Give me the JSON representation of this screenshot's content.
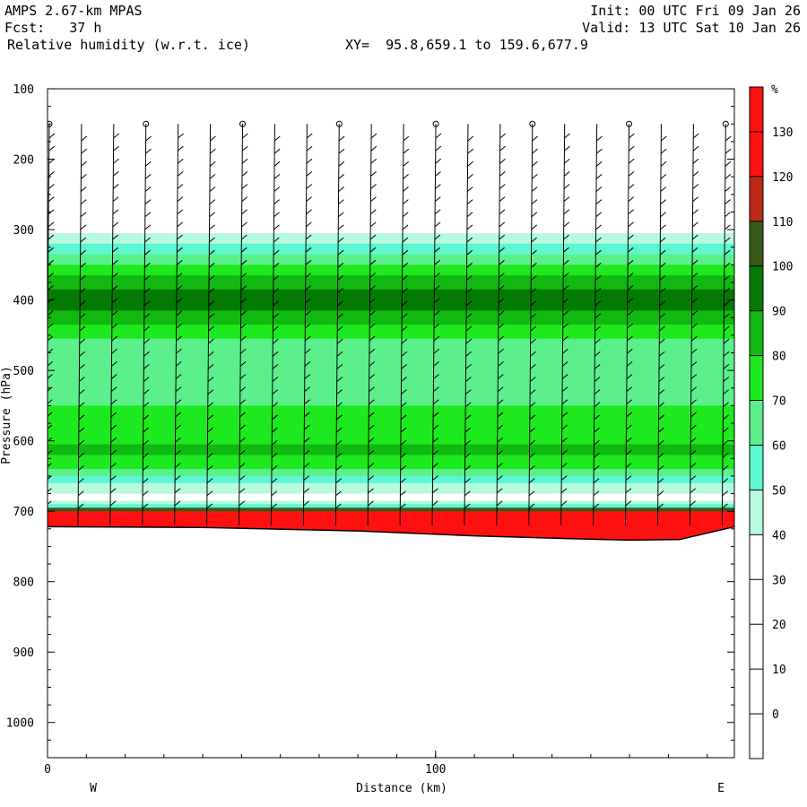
{
  "header": {
    "model": "AMPS 2.67-km MPAS",
    "forecast": "Fcst:   37 h",
    "field": "Relative humidity (w.r.t. ice)",
    "xy_range": "XY=  95.8,659.1 to 159.6,677.9",
    "init": "Init: 00 UTC Fri 09 Jan 26",
    "valid": "Valid: 13 UTC Sat 10 Jan 26"
  },
  "chart_data": {
    "type": "heatmap",
    "title": "Relative humidity (w.r.t. ice)",
    "xlabel": "Distance (km)",
    "ylabel": "Pressure (hPa)",
    "xlim": [
      0,
      177
    ],
    "ylim": [
      1050,
      100
    ],
    "x_ticks": [
      0,
      100
    ],
    "y_ticks": [
      100,
      200,
      300,
      400,
      500,
      600,
      700,
      800,
      900,
      1000
    ],
    "x_end_labels": {
      "left": "W",
      "right": "E"
    },
    "colorbar": {
      "unit": "%",
      "levels": [
        0,
        10,
        20,
        30,
        40,
        50,
        60,
        70,
        80,
        90,
        100,
        110,
        120,
        130
      ],
      "colors": [
        "#ffffff",
        "#ffffff",
        "#ffffff",
        "#ffffff",
        "#ffffff",
        "#b8fae0",
        "#5cf7d0",
        "#5cf08c",
        "#1ee81e",
        "#10b810",
        "#047a04",
        "#365a15",
        "#bb2a16",
        "#ff1111"
      ]
    },
    "rh_profile": [
      {
        "p": 100,
        "rh": 0
      },
      {
        "p": 280,
        "rh": 5
      },
      {
        "p": 290,
        "rh": 35
      },
      {
        "p": 300,
        "rh": 45
      },
      {
        "p": 315,
        "rh": 55
      },
      {
        "p": 330,
        "rh": 65
      },
      {
        "p": 345,
        "rh": 75
      },
      {
        "p": 360,
        "rh": 85
      },
      {
        "p": 375,
        "rh": 95
      },
      {
        "p": 395,
        "rh": 105
      },
      {
        "p": 425,
        "rh": 98
      },
      {
        "p": 440,
        "rh": 88
      },
      {
        "p": 460,
        "rh": 78
      },
      {
        "p": 500,
        "rh": 72
      },
      {
        "p": 540,
        "rh": 75
      },
      {
        "p": 560,
        "rh": 83
      },
      {
        "p": 585,
        "rh": 80
      },
      {
        "p": 610,
        "rh": 92
      },
      {
        "p": 630,
        "rh": 88
      },
      {
        "p": 650,
        "rh": 70
      },
      {
        "p": 665,
        "rh": 55
      },
      {
        "p": 680,
        "rh": 45
      },
      {
        "p": 692,
        "rh": 60
      },
      {
        "p": 700,
        "rh": 140
      },
      {
        "p": 760,
        "rh": 140
      }
    ],
    "terrain": [
      {
        "x": 0,
        "p": 722
      },
      {
        "x": 40,
        "p": 723
      },
      {
        "x": 80,
        "p": 728
      },
      {
        "x": 110,
        "p": 735
      },
      {
        "x": 135,
        "p": 739
      },
      {
        "x": 150,
        "p": 741
      },
      {
        "x": 163,
        "p": 740
      },
      {
        "x": 177,
        "p": 722
      }
    ],
    "wind_barb_x": [
      0,
      8.3,
      16.6,
      24.9,
      33.2,
      41.5,
      49.8,
      58.1,
      66.4,
      74.7,
      83,
      91.3,
      99.6,
      107.9,
      116.2,
      124.5,
      132.8,
      141.1,
      149.4,
      157.7,
      166,
      174.3
    ]
  }
}
